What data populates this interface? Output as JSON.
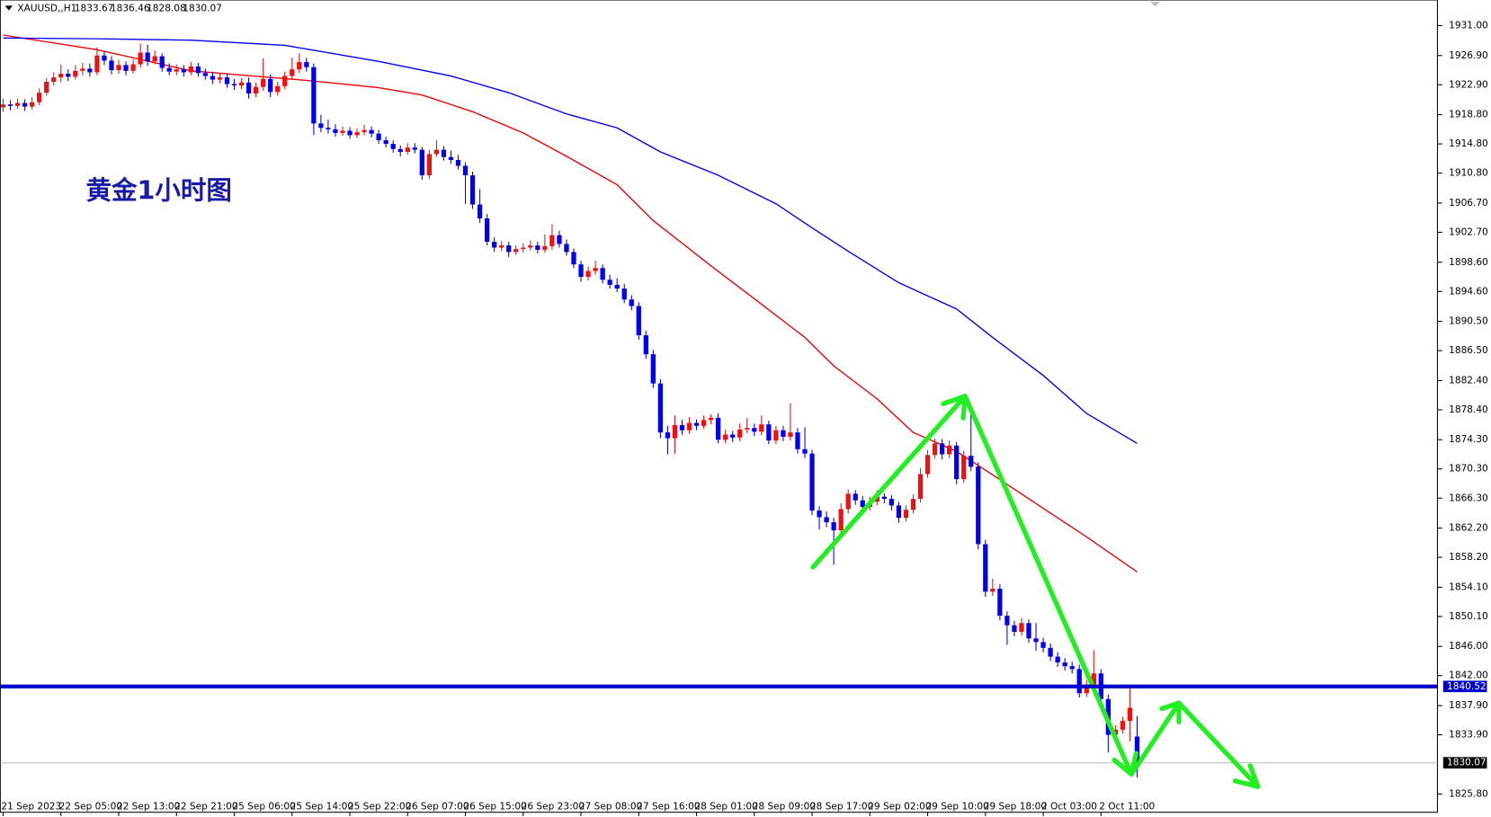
{
  "chart_data": {
    "type": "candlestick",
    "symbol": "XAUUSD,,H1",
    "title": "黄金1小时图",
    "up_color": "#ee1111",
    "down_color": "#0000ee",
    "ylim": [
      1823.3,
      1934.5
    ],
    "yticks": [
      {
        "value": 1931,
        "label": "1931.00"
      },
      {
        "value": 1926.9,
        "label": "1926.90"
      },
      {
        "value": 1922.9,
        "label": "1922.90"
      },
      {
        "value": 1918.8,
        "label": "1918.80"
      },
      {
        "value": 1914.8,
        "label": "1914.80"
      },
      {
        "value": 1910.8,
        "label": "1910.80"
      },
      {
        "value": 1906.7,
        "label": "1906.70"
      },
      {
        "value": 1902.7,
        "label": "1902.70"
      },
      {
        "value": 1898.6,
        "label": "1898.60"
      },
      {
        "value": 1894.6,
        "label": "1894.60"
      },
      {
        "value": 1890.5,
        "label": "1890.50"
      },
      {
        "value": 1886.5,
        "label": "1886.50"
      },
      {
        "value": 1882.4,
        "label": "1882.40"
      },
      {
        "value": 1878.4,
        "label": "1878.40"
      },
      {
        "value": 1874.3,
        "label": "1874.30"
      },
      {
        "value": 1870.3,
        "label": "1870.30"
      },
      {
        "value": 1866.3,
        "label": "1866.30"
      },
      {
        "value": 1862.2,
        "label": "1862.20"
      },
      {
        "value": 1858.2,
        "label": "1858.20"
      },
      {
        "value": 1854.1,
        "label": "1854.10"
      },
      {
        "value": 1850.1,
        "label": "1850.10"
      },
      {
        "value": 1846,
        "label": "1846.00"
      },
      {
        "value": 1842,
        "label": "1842.00"
      },
      {
        "value": 1837.9,
        "label": "1837.90"
      },
      {
        "value": 1833.9,
        "label": "1833.90"
      },
      {
        "value": 1825.8,
        "label": "1825.80"
      }
    ],
    "xticks": [
      {
        "value": 0,
        "label": "21 Sep 2023"
      },
      {
        "value": 8,
        "label": "22 Sep 05:00"
      },
      {
        "value": 16,
        "label": "22 Sep 13:00"
      },
      {
        "value": 24,
        "label": "22 Sep 21:00"
      },
      {
        "value": 32,
        "label": "25 Sep 06:00"
      },
      {
        "value": 40,
        "label": "25 Sep 14:00"
      },
      {
        "value": 48,
        "label": "25 Sep 22:00"
      },
      {
        "value": 56,
        "label": "26 Sep 07:00"
      },
      {
        "value": 64,
        "label": "26 Sep 15:00"
      },
      {
        "value": 72,
        "label": "26 Sep 23:00"
      },
      {
        "value": 80,
        "label": "27 Sep 08:00"
      },
      {
        "value": 88,
        "label": "27 Sep 16:00"
      },
      {
        "value": 96,
        "label": "28 Sep 01:00"
      },
      {
        "value": 104,
        "label": "28 Sep 09:00"
      },
      {
        "value": 112,
        "label": "28 Sep 17:00"
      },
      {
        "value": 120,
        "label": "29 Sep 02:00"
      },
      {
        "value": 128,
        "label": "29 Sep 10:00"
      },
      {
        "value": 136,
        "label": "29 Sep 18:00"
      },
      {
        "value": 144,
        "label": "2 Oct 03:00"
      },
      {
        "value": 152,
        "label": "2 Oct 11:00"
      }
    ],
    "hline": 1840.52,
    "hline_color": "#0000cc",
    "last_price": 1830.07,
    "ohlc": [
      [
        1919.8,
        1921.0,
        1919.2,
        1920.2
      ],
      [
        1920.2,
        1920.8,
        1919.4,
        1920.0
      ],
      [
        1920.0,
        1921.0,
        1919.6,
        1920.4
      ],
      [
        1920.4,
        1920.9,
        1919.3,
        1919.9
      ],
      [
        1919.9,
        1921.2,
        1919.5,
        1920.5
      ],
      [
        1920.5,
        1922.4,
        1920.1,
        1921.8
      ],
      [
        1921.8,
        1923.8,
        1921.4,
        1923.3
      ],
      [
        1923.3,
        1924.6,
        1922.8,
        1923.9
      ],
      [
        1923.9,
        1925.7,
        1923.2,
        1924.4
      ],
      [
        1924.4,
        1925.0,
        1923.4,
        1924.0
      ],
      [
        1924.0,
        1925.6,
        1923.6,
        1924.8
      ],
      [
        1924.8,
        1925.9,
        1924.2,
        1925.1
      ],
      [
        1925.1,
        1925.8,
        1924.0,
        1924.6
      ],
      [
        1924.6,
        1928.0,
        1924.2,
        1926.9
      ],
      [
        1926.9,
        1927.5,
        1925.6,
        1926.2
      ],
      [
        1926.2,
        1926.8,
        1924.3,
        1924.9
      ],
      [
        1924.9,
        1926.3,
        1924.4,
        1925.6
      ],
      [
        1925.6,
        1926.1,
        1924.2,
        1924.8
      ],
      [
        1924.8,
        1926.4,
        1924.4,
        1925.7
      ],
      [
        1925.7,
        1928.5,
        1925.2,
        1927.3
      ],
      [
        1927.3,
        1928.4,
        1925.5,
        1926.1
      ],
      [
        1926.1,
        1927.6,
        1925.7,
        1926.8
      ],
      [
        1926.8,
        1927.2,
        1924.7,
        1925.2
      ],
      [
        1925.2,
        1925.8,
        1924.2,
        1924.7
      ],
      [
        1924.7,
        1925.7,
        1924.2,
        1925.0
      ],
      [
        1925.0,
        1925.6,
        1924.0,
        1924.6
      ],
      [
        1924.6,
        1926.0,
        1924.2,
        1925.4
      ],
      [
        1925.4,
        1925.9,
        1924.0,
        1924.5
      ],
      [
        1924.5,
        1925.1,
        1923.6,
        1924.1
      ],
      [
        1924.1,
        1924.7,
        1923.0,
        1923.6
      ],
      [
        1923.6,
        1924.5,
        1923.1,
        1923.9
      ],
      [
        1923.9,
        1924.4,
        1922.5,
        1923.0
      ],
      [
        1923.0,
        1923.7,
        1922.2,
        1922.8
      ],
      [
        1922.8,
        1923.8,
        1922.3,
        1923.2
      ],
      [
        1923.2,
        1923.9,
        1921.0,
        1921.7
      ],
      [
        1921.7,
        1923.2,
        1921.2,
        1922.6
      ],
      [
        1922.6,
        1926.5,
        1922.1,
        1923.7
      ],
      [
        1923.7,
        1924.3,
        1921.2,
        1921.9
      ],
      [
        1921.9,
        1923.3,
        1921.4,
        1922.7
      ],
      [
        1922.7,
        1924.7,
        1922.3,
        1924.1
      ],
      [
        1924.1,
        1926.6,
        1923.6,
        1925.0
      ],
      [
        1925.0,
        1927.2,
        1924.5,
        1926.0
      ],
      [
        1926.0,
        1926.6,
        1924.7,
        1925.3
      ],
      [
        1925.3,
        1925.8,
        1916.0,
        1917.6
      ],
      [
        1917.6,
        1918.8,
        1916.4,
        1917.0
      ],
      [
        1917.0,
        1918.1,
        1916.2,
        1916.8
      ],
      [
        1916.8,
        1917.5,
        1915.8,
        1916.3
      ],
      [
        1916.3,
        1917.2,
        1915.9,
        1916.6
      ],
      [
        1916.6,
        1917.1,
        1915.5,
        1916.0
      ],
      [
        1916.0,
        1916.9,
        1915.6,
        1916.4
      ],
      [
        1916.4,
        1917.4,
        1916.0,
        1916.7
      ],
      [
        1916.7,
        1917.2,
        1915.7,
        1916.2
      ],
      [
        1916.2,
        1916.7,
        1914.8,
        1915.3
      ],
      [
        1915.3,
        1915.8,
        1914.3,
        1914.8
      ],
      [
        1914.8,
        1915.3,
        1913.6,
        1914.1
      ],
      [
        1914.1,
        1914.6,
        1913.1,
        1913.7
      ],
      [
        1913.7,
        1914.9,
        1913.3,
        1914.3
      ],
      [
        1914.3,
        1914.9,
        1913.5,
        1914.0
      ],
      [
        1914.0,
        1914.4,
        1909.9,
        1910.5
      ],
      [
        1910.5,
        1914.0,
        1910.0,
        1913.4
      ],
      [
        1913.4,
        1915.3,
        1913.0,
        1914.0
      ],
      [
        1914.0,
        1914.5,
        1912.5,
        1913.0
      ],
      [
        1913.0,
        1913.9,
        1912.1,
        1912.6
      ],
      [
        1912.6,
        1913.3,
        1911.3,
        1911.8
      ],
      [
        1911.8,
        1912.3,
        1906.6,
        1910.5
      ],
      [
        1910.5,
        1911.0,
        1905.9,
        1906.5
      ],
      [
        1906.5,
        1908.6,
        1904.0,
        1904.6
      ],
      [
        1904.6,
        1905.2,
        1900.9,
        1901.4
      ],
      [
        1901.4,
        1902.0,
        1900.0,
        1900.6
      ],
      [
        1900.6,
        1901.5,
        1900.1,
        1900.9
      ],
      [
        1900.9,
        1901.4,
        1899.3,
        1900.0
      ],
      [
        1900.0,
        1900.9,
        1899.6,
        1900.4
      ],
      [
        1900.4,
        1901.2,
        1899.9,
        1900.6
      ],
      [
        1900.6,
        1901.6,
        1900.2,
        1900.9
      ],
      [
        1900.9,
        1901.4,
        1899.8,
        1900.3
      ],
      [
        1900.3,
        1902.4,
        1899.9,
        1900.8
      ],
      [
        1900.8,
        1903.8,
        1900.3,
        1902.3
      ],
      [
        1902.3,
        1902.9,
        1900.6,
        1901.1
      ],
      [
        1901.1,
        1901.7,
        1899.5,
        1900.0
      ],
      [
        1900.0,
        1900.5,
        1897.8,
        1898.3
      ],
      [
        1898.3,
        1898.8,
        1895.9,
        1896.6
      ],
      [
        1896.6,
        1898.0,
        1896.1,
        1897.4
      ],
      [
        1897.4,
        1898.8,
        1896.9,
        1897.8
      ],
      [
        1897.8,
        1898.3,
        1895.7,
        1896.2
      ],
      [
        1896.2,
        1896.9,
        1895.0,
        1895.5
      ],
      [
        1895.5,
        1896.4,
        1894.5,
        1895.0
      ],
      [
        1895.0,
        1895.6,
        1893.0,
        1893.5
      ],
      [
        1893.5,
        1894.1,
        1892.0,
        1892.6
      ],
      [
        1892.6,
        1893.1,
        1888.0,
        1888.6
      ],
      [
        1888.6,
        1889.2,
        1885.4,
        1886.0
      ],
      [
        1886.0,
        1886.6,
        1881.4,
        1882.0
      ],
      [
        1882.0,
        1882.6,
        1874.5,
        1875.3
      ],
      [
        1875.3,
        1876.2,
        1872.3,
        1874.5
      ],
      [
        1874.5,
        1877.6,
        1872.4,
        1876.3
      ],
      [
        1876.3,
        1877.0,
        1875.0,
        1875.6
      ],
      [
        1875.6,
        1877.4,
        1875.1,
        1876.6
      ],
      [
        1876.6,
        1877.1,
        1875.6,
        1876.2
      ],
      [
        1876.2,
        1877.6,
        1875.8,
        1877.0
      ],
      [
        1877.0,
        1877.8,
        1876.4,
        1877.3
      ],
      [
        1877.3,
        1877.9,
        1873.8,
        1874.3
      ],
      [
        1874.3,
        1875.7,
        1873.8,
        1875.0
      ],
      [
        1875.0,
        1875.5,
        1874.0,
        1874.6
      ],
      [
        1874.6,
        1876.5,
        1874.1,
        1875.7
      ],
      [
        1875.7,
        1877.3,
        1875.2,
        1875.9
      ],
      [
        1875.9,
        1876.5,
        1874.8,
        1875.4
      ],
      [
        1875.4,
        1877.6,
        1874.9,
        1876.4
      ],
      [
        1876.4,
        1876.9,
        1873.7,
        1874.2
      ],
      [
        1874.2,
        1876.2,
        1873.7,
        1875.6
      ],
      [
        1875.6,
        1876.2,
        1874.1,
        1874.7
      ],
      [
        1874.7,
        1879.3,
        1874.2,
        1875.3
      ],
      [
        1875.3,
        1875.9,
        1872.4,
        1873.0
      ],
      [
        1873.0,
        1876.0,
        1871.8,
        1872.4
      ],
      [
        1872.4,
        1872.9,
        1864.0,
        1864.6
      ],
      [
        1864.6,
        1865.2,
        1862.0,
        1863.7
      ],
      [
        1863.7,
        1864.5,
        1862.3,
        1863.0
      ],
      [
        1863.0,
        1863.6,
        1857.2,
        1861.9
      ],
      [
        1861.9,
        1865.6,
        1860.8,
        1864.8
      ],
      [
        1864.8,
        1867.5,
        1864.2,
        1866.9
      ],
      [
        1866.9,
        1867.4,
        1865.4,
        1866.0
      ],
      [
        1866.0,
        1866.6,
        1864.4,
        1865.1
      ],
      [
        1865.1,
        1866.5,
        1864.6,
        1865.8
      ],
      [
        1865.8,
        1867.4,
        1865.3,
        1866.5
      ],
      [
        1866.5,
        1867.0,
        1865.6,
        1866.2
      ],
      [
        1866.2,
        1866.7,
        1864.6,
        1865.3
      ],
      [
        1865.3,
        1865.8,
        1862.9,
        1863.6
      ],
      [
        1863.6,
        1865.3,
        1863.1,
        1864.7
      ],
      [
        1864.7,
        1866.8,
        1864.2,
        1866.2
      ],
      [
        1866.2,
        1870.4,
        1865.7,
        1869.6
      ],
      [
        1869.6,
        1872.9,
        1869.1,
        1872.2
      ],
      [
        1872.2,
        1874.5,
        1871.7,
        1873.8
      ],
      [
        1873.8,
        1874.4,
        1871.6,
        1872.3
      ],
      [
        1872.3,
        1874.2,
        1871.8,
        1873.5
      ],
      [
        1873.5,
        1874.0,
        1868.2,
        1868.9
      ],
      [
        1868.9,
        1872.8,
        1868.4,
        1872.1
      ],
      [
        1872.1,
        1878.2,
        1870.0,
        1870.6
      ],
      [
        1870.6,
        1871.2,
        1859.3,
        1860.0
      ],
      [
        1860.0,
        1860.6,
        1852.8,
        1853.5
      ],
      [
        1853.5,
        1855.3,
        1852.9,
        1853.9
      ],
      [
        1853.9,
        1854.5,
        1849.6,
        1850.2
      ],
      [
        1850.2,
        1850.8,
        1846.2,
        1848.9
      ],
      [
        1848.9,
        1849.5,
        1847.4,
        1848.0
      ],
      [
        1848.0,
        1849.9,
        1847.5,
        1849.2
      ],
      [
        1849.2,
        1849.7,
        1846.5,
        1847.1
      ],
      [
        1847.1,
        1849.2,
        1845.4,
        1846.6
      ],
      [
        1846.6,
        1847.2,
        1845.2,
        1845.8
      ],
      [
        1845.8,
        1846.4,
        1844.0,
        1844.6
      ],
      [
        1844.6,
        1845.2,
        1843.2,
        1843.8
      ],
      [
        1843.8,
        1844.4,
        1842.7,
        1843.3
      ],
      [
        1843.3,
        1843.9,
        1842.3,
        1842.9
      ],
      [
        1842.9,
        1843.5,
        1839.0,
        1839.6
      ],
      [
        1839.6,
        1841.4,
        1839.1,
        1840.8
      ],
      [
        1840.8,
        1845.5,
        1840.3,
        1842.3
      ],
      [
        1842.3,
        1842.9,
        1838.2,
        1838.8
      ],
      [
        1838.8,
        1839.4,
        1831.5,
        1833.9
      ],
      [
        1833.9,
        1835.2,
        1832.9,
        1834.6
      ],
      [
        1834.6,
        1836.4,
        1834.1,
        1835.8
      ],
      [
        1835.8,
        1840.5,
        1833.0,
        1837.6
      ],
      [
        1833.67,
        1836.46,
        1828.08,
        1830.07
      ]
    ],
    "series": [
      {
        "color": "#ee0000",
        "x": [
          0,
          13,
          26,
          42,
          52,
          58,
          65,
          72,
          78,
          85,
          90,
          98,
          104,
          111,
          115,
          121,
          126,
          132,
          137,
          144,
          150,
          157
        ],
        "values": [
          1929.7,
          1927.7,
          1924.8,
          1923.5,
          1922.5,
          1921.5,
          1919.2,
          1916.3,
          1913.1,
          1909.2,
          1904.3,
          1898.1,
          1893.6,
          1888.3,
          1884.4,
          1879.9,
          1875.3,
          1872.7,
          1869.5,
          1864.9,
          1861.0,
          1856.2
        ]
      },
      {
        "color": "#0000ee",
        "x": [
          0,
          13,
          26,
          39,
          52,
          62,
          70,
          78,
          85,
          91,
          99,
          107,
          112,
          117,
          124,
          132,
          137,
          144,
          150,
          157
        ],
        "values": [
          1929.3,
          1929.2,
          1929.0,
          1928.3,
          1926.1,
          1924.1,
          1921.8,
          1918.9,
          1917.0,
          1913.7,
          1910.5,
          1906.6,
          1903.3,
          1900.1,
          1895.8,
          1892.2,
          1888.3,
          1883.1,
          1877.9,
          1873.8
        ]
      }
    ]
  }
}
